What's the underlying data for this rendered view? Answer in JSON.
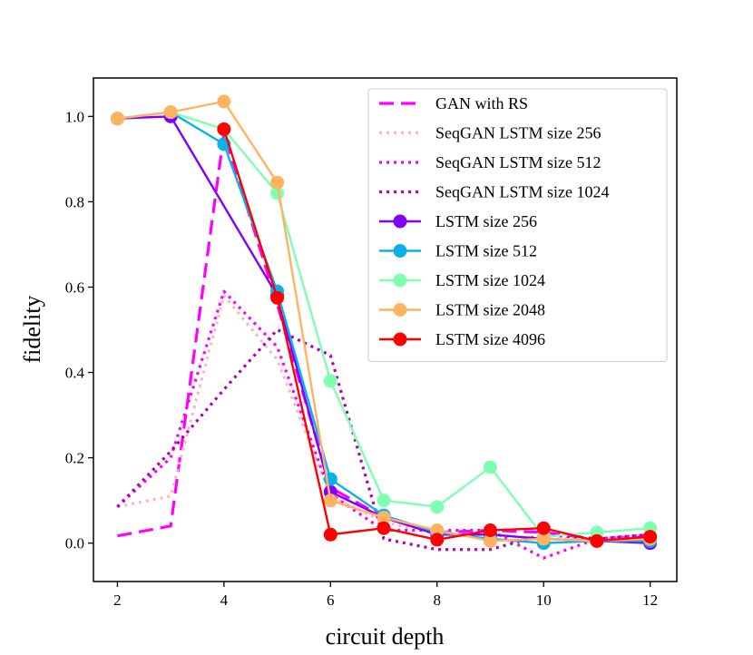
{
  "chart_data": {
    "type": "line",
    "title": "",
    "xlabel": "circuit depth",
    "ylabel": "fidelity",
    "xlim": [
      1.55,
      12.5
    ],
    "ylim": [
      -0.09,
      1.09
    ],
    "xticks": [
      2,
      4,
      6,
      8,
      10,
      12
    ],
    "yticks": [
      0.0,
      0.2,
      0.4,
      0.6,
      0.8,
      1.0
    ],
    "ytick_labels": [
      "0.0",
      "0.2",
      "0.4",
      "0.6",
      "0.8",
      "1.0"
    ],
    "legend_position": "upper-right",
    "series": [
      {
        "name": "GAN with RS",
        "style": "dashed",
        "color": "#ff00ff",
        "marker": false,
        "x": [
          2,
          3,
          4,
          5,
          6,
          7,
          8,
          9,
          10,
          11,
          12
        ],
        "y": [
          0.017,
          0.04,
          0.96,
          0.56,
          0.13,
          0.06,
          0.025,
          0.03,
          0.025,
          0.01,
          0.015
        ]
      },
      {
        "name": "SeqGAN LSTM size 256",
        "style": "dotted",
        "color": "#ffb6c1",
        "marker": false,
        "x": [
          2,
          3,
          4,
          5,
          6,
          7,
          8,
          9,
          10,
          11,
          12
        ],
        "y": [
          0.085,
          0.11,
          0.58,
          0.43,
          0.11,
          0.05,
          0.02,
          0.02,
          0.01,
          0.01,
          0.01
        ]
      },
      {
        "name": "SeqGAN LSTM size 512",
        "style": "dotted",
        "color": "#ff00ff",
        "marker": false,
        "x": [
          2,
          3,
          4,
          5,
          6,
          7,
          8,
          9,
          10,
          11,
          12
        ],
        "y": [
          0.085,
          0.2,
          0.59,
          0.46,
          0.115,
          0.03,
          0.03,
          0.03,
          -0.035,
          0.01,
          0.02
        ]
      },
      {
        "name": "SeqGAN LSTM size 1024",
        "style": "dotted",
        "color": "#b000b0",
        "marker": false,
        "x": [
          2,
          3,
          4,
          5,
          6,
          7,
          8,
          9,
          10,
          11,
          12
        ],
        "y": [
          0.085,
          0.215,
          0.36,
          0.5,
          0.44,
          0.01,
          -0.015,
          -0.015,
          0.02,
          0.01,
          0.02
        ]
      },
      {
        "name": "LSTM size 256",
        "style": "solid",
        "color": "#8000ff",
        "marker": true,
        "x": [
          2,
          3,
          5,
          6,
          7,
          8,
          9,
          10,
          11,
          12
        ],
        "y": [
          0.995,
          1.0,
          0.58,
          0.12,
          0.06,
          0.02,
          0.02,
          0.01,
          0.005,
          0.0
        ]
      },
      {
        "name": "LSTM size 512",
        "style": "solid",
        "color": "#0cb0e8",
        "marker": true,
        "x": [
          2,
          3,
          4,
          5,
          6,
          7,
          8,
          9,
          10,
          11,
          12
        ],
        "y": [
          0.995,
          1.01,
          0.935,
          0.59,
          0.15,
          0.065,
          0.025,
          0.01,
          0.0,
          0.005,
          0.005
        ]
      },
      {
        "name": "LSTM size 1024",
        "style": "solid",
        "color": "#7fffb2",
        "marker": true,
        "x": [
          2,
          3,
          4,
          5,
          6,
          7,
          8,
          9,
          10,
          11,
          12
        ],
        "y": [
          0.995,
          1.01,
          0.97,
          0.82,
          0.38,
          0.1,
          0.085,
          0.178,
          0.015,
          0.025,
          0.035
        ]
      },
      {
        "name": "LSTM size 2048",
        "style": "solid",
        "color": "#ffb360",
        "marker": true,
        "x": [
          2,
          3,
          4,
          5,
          6,
          7,
          8,
          9,
          10,
          11,
          12
        ],
        "y": [
          0.995,
          1.01,
          1.035,
          0.845,
          0.1,
          0.06,
          0.03,
          0.005,
          0.01,
          0.005,
          0.01
        ]
      },
      {
        "name": "LSTM size 4096",
        "style": "solid",
        "color": "#ff0000",
        "marker": true,
        "x": [
          4,
          5,
          6,
          7,
          8,
          9,
          10,
          11,
          12
        ],
        "y": [
          0.97,
          0.575,
          0.02,
          0.035,
          0.008,
          0.03,
          0.035,
          0.005,
          0.015
        ]
      }
    ]
  }
}
